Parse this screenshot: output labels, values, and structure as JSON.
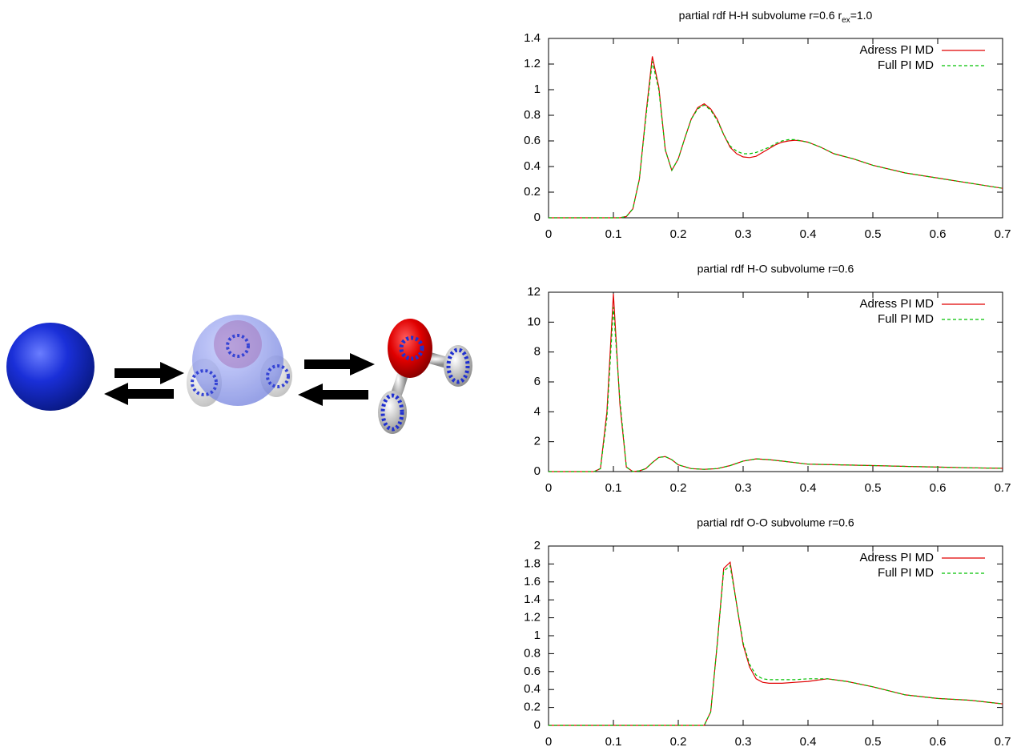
{
  "chart_data": [
    {
      "type": "line",
      "title": [
        "partial rdf H-H subvolume r=0.6 r",
        "ex",
        "=1.0"
      ],
      "x": [
        0,
        0.05,
        0.1,
        0.11,
        0.12,
        0.13,
        0.14,
        0.15,
        0.16,
        0.17,
        0.18,
        0.19,
        0.2,
        0.21,
        0.22,
        0.23,
        0.24,
        0.25,
        0.26,
        0.27,
        0.28,
        0.29,
        0.3,
        0.31,
        0.32,
        0.33,
        0.34,
        0.35,
        0.36,
        0.37,
        0.38,
        0.39,
        0.4,
        0.42,
        0.44,
        0.47,
        0.5,
        0.55,
        0.6,
        0.65,
        0.7
      ],
      "series": [
        {
          "name": "Adress PI MD",
          "color": "#e00000",
          "line_style": "solid",
          "values": [
            0,
            0,
            0,
            0,
            0.01,
            0.07,
            0.3,
            0.8,
            1.26,
            1.02,
            0.53,
            0.37,
            0.46,
            0.62,
            0.77,
            0.86,
            0.89,
            0.85,
            0.77,
            0.65,
            0.55,
            0.5,
            0.475,
            0.47,
            0.48,
            0.51,
            0.54,
            0.57,
            0.59,
            0.6,
            0.605,
            0.6,
            0.59,
            0.55,
            0.5,
            0.46,
            0.41,
            0.35,
            0.31,
            0.27,
            0.23
          ]
        },
        {
          "name": "Full PI MD",
          "color": "#00c000",
          "line_style": "dashed",
          "values": [
            0,
            0,
            0,
            0,
            0.01,
            0.07,
            0.3,
            0.78,
            1.22,
            1.0,
            0.53,
            0.37,
            0.46,
            0.62,
            0.77,
            0.85,
            0.88,
            0.84,
            0.76,
            0.65,
            0.56,
            0.52,
            0.5,
            0.5,
            0.51,
            0.53,
            0.55,
            0.58,
            0.6,
            0.61,
            0.61,
            0.6,
            0.59,
            0.55,
            0.5,
            0.46,
            0.41,
            0.35,
            0.31,
            0.27,
            0.23
          ]
        }
      ],
      "xlim": [
        0,
        0.7
      ],
      "xticks": [
        0,
        0.1,
        0.2,
        0.3,
        0.4,
        0.5,
        0.6,
        0.7
      ],
      "ylim": [
        0,
        1.4
      ],
      "yticks": [
        0,
        0.2,
        0.4,
        0.6,
        0.8,
        1,
        1.2,
        1.4
      ],
      "legend": "top-right"
    },
    {
      "type": "line",
      "title": "partial rdf H-O subvolume r=0.6",
      "x": [
        0,
        0.05,
        0.07,
        0.08,
        0.09,
        0.1,
        0.11,
        0.12,
        0.13,
        0.14,
        0.15,
        0.16,
        0.17,
        0.18,
        0.19,
        0.2,
        0.22,
        0.24,
        0.26,
        0.28,
        0.3,
        0.32,
        0.34,
        0.36,
        0.38,
        0.4,
        0.45,
        0.5,
        0.55,
        0.6,
        0.65,
        0.7
      ],
      "series": [
        {
          "name": "Adress PI MD",
          "color": "#e00000",
          "line_style": "solid",
          "values": [
            0,
            0,
            0,
            0.2,
            4.0,
            11.9,
            4.5,
            0.3,
            0,
            0.05,
            0.2,
            0.6,
            0.95,
            1.0,
            0.8,
            0.45,
            0.2,
            0.15,
            0.2,
            0.4,
            0.7,
            0.85,
            0.8,
            0.7,
            0.6,
            0.5,
            0.45,
            0.4,
            0.35,
            0.3,
            0.25,
            0.22
          ]
        },
        {
          "name": "Full PI MD",
          "color": "#00c000",
          "line_style": "dashed",
          "values": [
            0,
            0,
            0,
            0.2,
            3.6,
            11.0,
            4.8,
            0.3,
            0,
            0.05,
            0.2,
            0.6,
            0.95,
            1.0,
            0.8,
            0.45,
            0.2,
            0.15,
            0.2,
            0.4,
            0.7,
            0.85,
            0.8,
            0.7,
            0.6,
            0.5,
            0.45,
            0.4,
            0.35,
            0.3,
            0.25,
            0.22
          ]
        }
      ],
      "xlim": [
        0,
        0.7
      ],
      "xticks": [
        0,
        0.1,
        0.2,
        0.3,
        0.4,
        0.5,
        0.6,
        0.7
      ],
      "ylim": [
        0,
        12
      ],
      "yticks": [
        0,
        2,
        4,
        6,
        8,
        10,
        12
      ],
      "legend": "top-right"
    },
    {
      "type": "line",
      "title": "partial rdf O-O subvolume r=0.6",
      "x": [
        0,
        0.1,
        0.2,
        0.23,
        0.24,
        0.25,
        0.26,
        0.27,
        0.28,
        0.29,
        0.3,
        0.31,
        0.32,
        0.33,
        0.34,
        0.36,
        0.38,
        0.4,
        0.43,
        0.46,
        0.5,
        0.55,
        0.6,
        0.65,
        0.7
      ],
      "series": [
        {
          "name": "Adress PI MD",
          "color": "#e00000",
          "line_style": "solid",
          "values": [
            0,
            0,
            0,
            0,
            0,
            0.15,
            0.9,
            1.75,
            1.82,
            1.35,
            0.9,
            0.65,
            0.52,
            0.48,
            0.47,
            0.47,
            0.48,
            0.49,
            0.52,
            0.49,
            0.43,
            0.34,
            0.3,
            0.28,
            0.24
          ]
        },
        {
          "name": "Full PI MD",
          "color": "#00c000",
          "line_style": "dashed",
          "values": [
            0,
            0,
            0,
            0,
            0,
            0.15,
            0.9,
            1.72,
            1.78,
            1.35,
            0.92,
            0.68,
            0.56,
            0.52,
            0.51,
            0.51,
            0.51,
            0.52,
            0.52,
            0.49,
            0.43,
            0.34,
            0.3,
            0.28,
            0.24
          ]
        }
      ],
      "xlim": [
        0,
        0.7
      ],
      "xticks": [
        0,
        0.1,
        0.2,
        0.3,
        0.4,
        0.5,
        0.6,
        0.7
      ],
      "ylim": [
        0,
        2
      ],
      "yticks": [
        0,
        0.2,
        0.4,
        0.6,
        0.8,
        1,
        1.2,
        1.4,
        1.6,
        1.8,
        2
      ],
      "legend": "top-right"
    }
  ]
}
